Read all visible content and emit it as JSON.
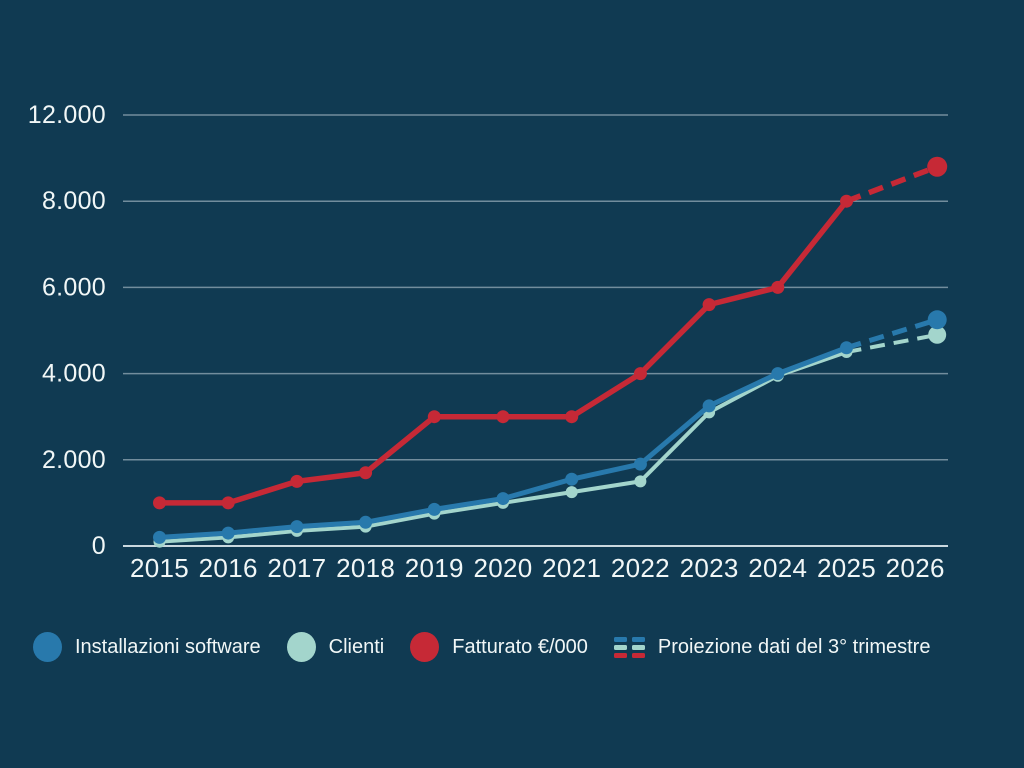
{
  "colors": {
    "background": "#103A52",
    "text": "#F1F7F7",
    "gridline": "rgba(235,245,248,0.45)",
    "axis_line": "rgba(235,245,248,0.85)"
  },
  "chart_data": {
    "type": "line",
    "x": [
      "2015",
      "2016",
      "2017",
      "2018",
      "2019",
      "2020",
      "2021",
      "2022",
      "2023",
      "2024",
      "2025",
      "2026"
    ],
    "y_axis": {
      "tick_values": [
        0,
        2000,
        4000,
        6000,
        8000,
        12000
      ],
      "tick_labels": [
        "0",
        "2.000",
        "4.000",
        "6.000",
        "8.000",
        "12.000"
      ]
    },
    "grid": true,
    "legend_position": "bottom",
    "series": [
      {
        "name": "Installazioni software",
        "color": "#2879AC",
        "values": [
          200,
          300,
          450,
          550,
          850,
          1100,
          1550,
          1900,
          3250,
          4000,
          4600,
          5250
        ]
      },
      {
        "name": "Clienti",
        "color": "#A3D5CC",
        "values": [
          100,
          200,
          350,
          450,
          750,
          1000,
          1250,
          1500,
          3100,
          3950,
          4500,
          4900
        ]
      },
      {
        "name": "Fatturato €/000",
        "color": "#C62936",
        "values": [
          1000,
          1000,
          1500,
          1700,
          3000,
          3000,
          3000,
          4000,
          5600,
          6000,
          8000,
          9600
        ]
      }
    ],
    "projection": {
      "label": "Proiezione dati del 3° trimestre",
      "segment": [
        "2025",
        "2026"
      ],
      "style": "dashed"
    }
  },
  "legend": {
    "items": [
      {
        "label": "Installazioni software",
        "swatch": "circle",
        "color": "#2879AC"
      },
      {
        "label": "Clienti",
        "swatch": "circle",
        "color": "#A3D5CC"
      },
      {
        "label": "Fatturato €/000",
        "swatch": "circle",
        "color": "#C62936"
      },
      {
        "label": "Proiezione dati del 3° trimestre",
        "swatch": "dashes",
        "colors": [
          "#2879AC",
          "#A3D5CC",
          "#C62936"
        ]
      }
    ]
  }
}
